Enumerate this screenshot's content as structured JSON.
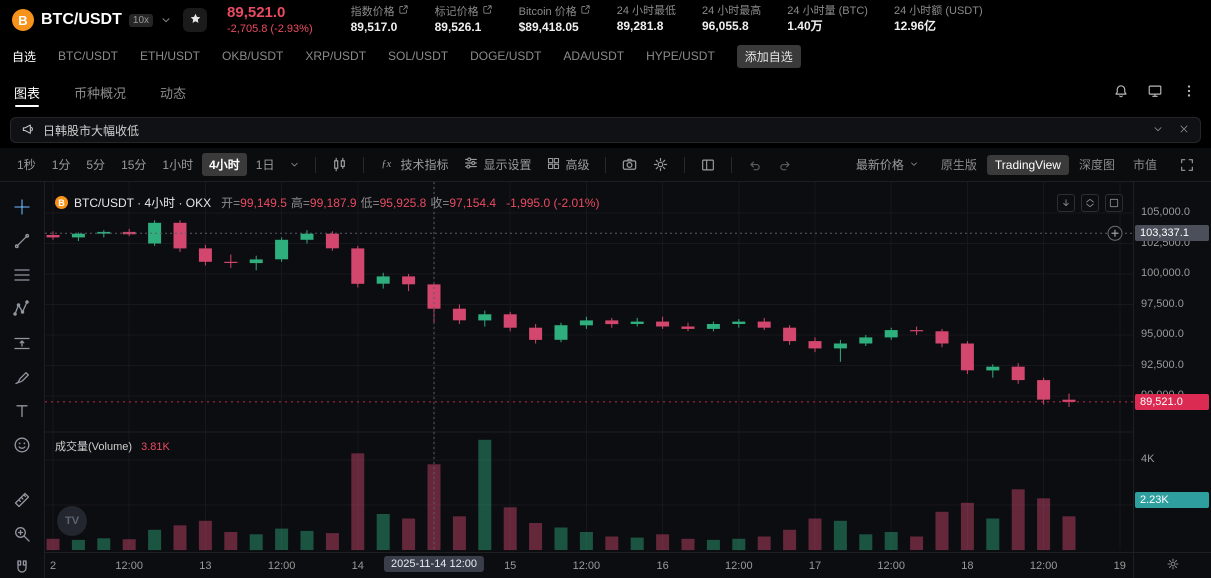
{
  "colors": {
    "up": "#2fae7e",
    "down": "#d3476e",
    "accent_red": "#ea4b62",
    "badge_red": "#dc2b52",
    "badge_gray": "#4b4f5a",
    "badge_teal": "#2f9e9e",
    "brand_orange": "#f7931a",
    "highlight_pill": "#3a3e4a"
  },
  "header": {
    "pair": "BTC/USDT",
    "leverage": "10x",
    "price": "89,521.0",
    "change": "-2,705.8 (-2.93%)",
    "stats": [
      {
        "label": "指数价格",
        "value": "89,517.0",
        "link": true
      },
      {
        "label": "标记价格",
        "value": "89,526.1",
        "link": true
      },
      {
        "label": "Bitcoin 价格",
        "value": "$89,418.05",
        "link": true
      },
      {
        "label": "24 小时最低",
        "value": "89,281.8",
        "link": false
      },
      {
        "label": "24 小时最高",
        "value": "96,055.8",
        "link": false
      },
      {
        "label": "24 小时量 (BTC)",
        "value": "1.40万",
        "link": false
      },
      {
        "label": "24 小时额 (USDT)",
        "value": "12.96亿",
        "link": false
      }
    ]
  },
  "pairs_nav": {
    "favorites_label": "自选",
    "items": [
      "BTC/USDT",
      "ETH/USDT",
      "OKB/USDT",
      "XRP/USDT",
      "SOL/USDT",
      "DOGE/USDT",
      "ADA/USDT",
      "HYPE/USDT"
    ],
    "add_label": "添加自选"
  },
  "tabs": [
    {
      "label": "图表",
      "active": true
    },
    {
      "label": "币种概况",
      "active": false
    },
    {
      "label": "动态",
      "active": false
    }
  ],
  "news_bar": {
    "text": "日韩股市大幅收低"
  },
  "toolbar": {
    "intervals": [
      "1秒",
      "1分",
      "5分",
      "15分",
      "1小时",
      "4小时",
      "1日"
    ],
    "active_interval": "4小时",
    "indicators_label": "技术指标",
    "display_label": "显示设置",
    "advanced_label": "高级",
    "price_mode": "最新价格",
    "chart_modes": [
      "原生版",
      "TradingView",
      "深度图",
      "市值"
    ],
    "active_mode": "TradingView"
  },
  "tools": [
    "crosshair",
    "trend-line",
    "fib-retracement",
    "xabcd-pattern",
    "long-short-position",
    "brush",
    "text",
    "emoji",
    "measure",
    "zoom-in",
    "magnet"
  ],
  "chart": {
    "legend": {
      "symbol": "BTC/USDT · 4小时 · OKX",
      "items": [
        {
          "k": "开",
          "v": "99,149.5"
        },
        {
          "k": "高",
          "v": "99,187.9"
        },
        {
          "k": "低",
          "v": "95,925.8"
        },
        {
          "k": "收",
          "v": "97,154.4"
        }
      ],
      "change": "-1,995.0 (-2.01%)"
    },
    "volume_label": "成交量(Volume)",
    "volume_value": "3.81K",
    "y_ticks": [
      {
        "label": "105,000.0",
        "price": 105000
      },
      {
        "label": "102,500.0",
        "price": 102500
      },
      {
        "label": "100,000.0",
        "price": 100000
      },
      {
        "label": "97,500.0",
        "price": 97500
      },
      {
        "label": "95,000.0",
        "price": 95000
      },
      {
        "label": "92,500.0",
        "price": 92500
      },
      {
        "label": "90,000.0",
        "price": 90000
      }
    ],
    "vol_ticks": [
      {
        "label": "4K",
        "v": 4000
      },
      {
        "label": "2K",
        "v": 2000
      }
    ],
    "crosshair_badge": {
      "label": "103,337.1",
      "price": 103337.1
    },
    "last_price_badge": {
      "label": "89,521.0",
      "price": 89521.0
    },
    "vol_badge": {
      "label": "2.23K",
      "v": 2230
    },
    "x_ticks": [
      {
        "i": 0,
        "label": "2",
        "highlight": false
      },
      {
        "i": 3,
        "label": "12:00",
        "highlight": false
      },
      {
        "i": 6,
        "label": "13",
        "highlight": false
      },
      {
        "i": 9,
        "label": "12:00",
        "highlight": false
      },
      {
        "i": 12,
        "label": "14",
        "highlight": false
      },
      {
        "i": 15,
        "label": "2025-11-14 12:00",
        "highlight": true
      },
      {
        "i": 18,
        "label": "15",
        "highlight": false
      },
      {
        "i": 21,
        "label": "12:00",
        "highlight": false
      },
      {
        "i": 24,
        "label": "16",
        "highlight": false
      },
      {
        "i": 27,
        "label": "12:00",
        "highlight": false
      },
      {
        "i": 30,
        "label": "17",
        "highlight": false
      },
      {
        "i": 33,
        "label": "12:00",
        "highlight": false
      },
      {
        "i": 36,
        "label": "18",
        "highlight": false
      },
      {
        "i": 39,
        "label": "12:00",
        "highlight": false
      },
      {
        "i": 42,
        "label": "19",
        "highlight": false
      }
    ]
  },
  "chart_data": {
    "type": "candlestick",
    "interval": "4小时",
    "columns": [
      "open",
      "high",
      "low",
      "close",
      "volume"
    ],
    "crosshair_index": 15,
    "candles": [
      [
        103200,
        103500,
        102800,
        103000,
        500
      ],
      [
        103000,
        103400,
        102700,
        103300,
        450
      ],
      [
        103300,
        103600,
        103000,
        103450,
        520
      ],
      [
        103450,
        103700,
        103100,
        103250,
        480
      ],
      [
        102500,
        104400,
        102300,
        104200,
        900
      ],
      [
        104200,
        104400,
        101800,
        102100,
        1100
      ],
      [
        102100,
        102400,
        100700,
        101000,
        1300
      ],
      [
        101000,
        101600,
        100500,
        100900,
        800
      ],
      [
        100900,
        101500,
        100300,
        101200,
        700
      ],
      [
        101200,
        103000,
        101000,
        102800,
        950
      ],
      [
        102800,
        103600,
        102500,
        103300,
        850
      ],
      [
        103300,
        103500,
        101900,
        102100,
        750
      ],
      [
        102100,
        102300,
        98900,
        99200,
        4300
      ],
      [
        99200,
        100100,
        98800,
        99800,
        1600
      ],
      [
        99800,
        100000,
        98600,
        99150,
        1400
      ],
      [
        99149.5,
        99187.9,
        95925.8,
        97154.4,
        3810
      ],
      [
        97154,
        97500,
        95900,
        96200,
        1500
      ],
      [
        96200,
        97000,
        95700,
        96700,
        4900
      ],
      [
        96700,
        96900,
        95300,
        95600,
        1900
      ],
      [
        95600,
        95900,
        94300,
        94600,
        1200
      ],
      [
        94600,
        96000,
        94400,
        95800,
        1000
      ],
      [
        95800,
        96500,
        95500,
        96200,
        800
      ],
      [
        96200,
        96400,
        95600,
        95900,
        600
      ],
      [
        95900,
        96400,
        95700,
        96100,
        550
      ],
      [
        96100,
        96500,
        95500,
        95700,
        700
      ],
      [
        95700,
        96000,
        95300,
        95500,
        500
      ],
      [
        95500,
        96100,
        95300,
        95900,
        450
      ],
      [
        95900,
        96300,
        95600,
        96100,
        500
      ],
      [
        96100,
        96400,
        95400,
        95600,
        600
      ],
      [
        95600,
        95800,
        94200,
        94500,
        900
      ],
      [
        94500,
        94800,
        93600,
        93900,
        1400
      ],
      [
        93900,
        94600,
        92800,
        94300,
        1300
      ],
      [
        94300,
        95000,
        94100,
        94800,
        700
      ],
      [
        94800,
        95600,
        94600,
        95400,
        800
      ],
      [
        95400,
        95700,
        95000,
        95300,
        600
      ],
      [
        95300,
        95500,
        94000,
        94300,
        1700
      ],
      [
        94300,
        94500,
        91800,
        92100,
        2100
      ],
      [
        92100,
        92600,
        91500,
        92400,
        1400
      ],
      [
        92400,
        92700,
        91000,
        91300,
        2700
      ],
      [
        91300,
        91500,
        89300,
        89700,
        2300
      ],
      [
        89700,
        90200,
        89100,
        89521,
        1500
      ]
    ]
  }
}
